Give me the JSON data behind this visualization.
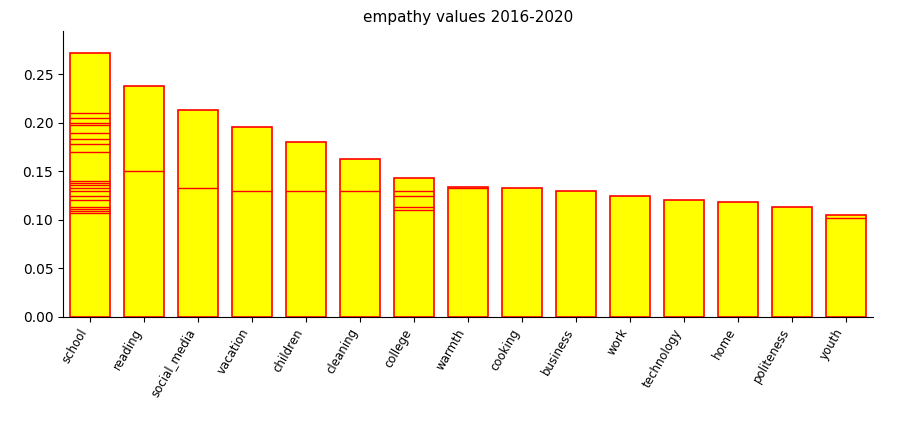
{
  "title": "empathy values 2016-2020",
  "categories": [
    "school",
    "reading",
    "social_media",
    "vacation",
    "children",
    "cleaning",
    "college",
    "warmth",
    "cooking",
    "business",
    "work",
    "technology",
    "home",
    "politeness",
    "youth"
  ],
  "bar_max": [
    0.272,
    0.238,
    0.213,
    0.196,
    0.18,
    0.163,
    0.143,
    0.134,
    0.133,
    0.13,
    0.125,
    0.12,
    0.118,
    0.113,
    0.105
  ],
  "year_lines": {
    "school": [
      0.107,
      0.109,
      0.111,
      0.113,
      0.12,
      0.125,
      0.13,
      0.133,
      0.136,
      0.138,
      0.14,
      0.17,
      0.178,
      0.183,
      0.19,
      0.198,
      0.2,
      0.205,
      0.21
    ],
    "reading": [
      0.15
    ],
    "social_media": [
      0.133
    ],
    "vacation": [
      0.13
    ],
    "children": [
      0.13
    ],
    "cleaning": [
      0.13
    ],
    "college": [
      0.11,
      0.113,
      0.125,
      0.13
    ],
    "warmth": [
      0.133
    ],
    "cooking": [],
    "business": [],
    "work": [],
    "technology": [],
    "home": [],
    "politeness": [],
    "youth": [
      0.102
    ]
  },
  "bar_color": "#FFFF00",
  "bar_edge_color": "#FF0000",
  "line_color": "#FF0000",
  "ylim": [
    0.0,
    0.295
  ],
  "yticks": [
    0.0,
    0.05,
    0.1,
    0.15,
    0.2,
    0.25
  ],
  "figsize": [
    9.0,
    4.4
  ],
  "dpi": 100,
  "bar_width": 0.75,
  "title_fontsize": 11,
  "tick_fontsize": 8.5
}
